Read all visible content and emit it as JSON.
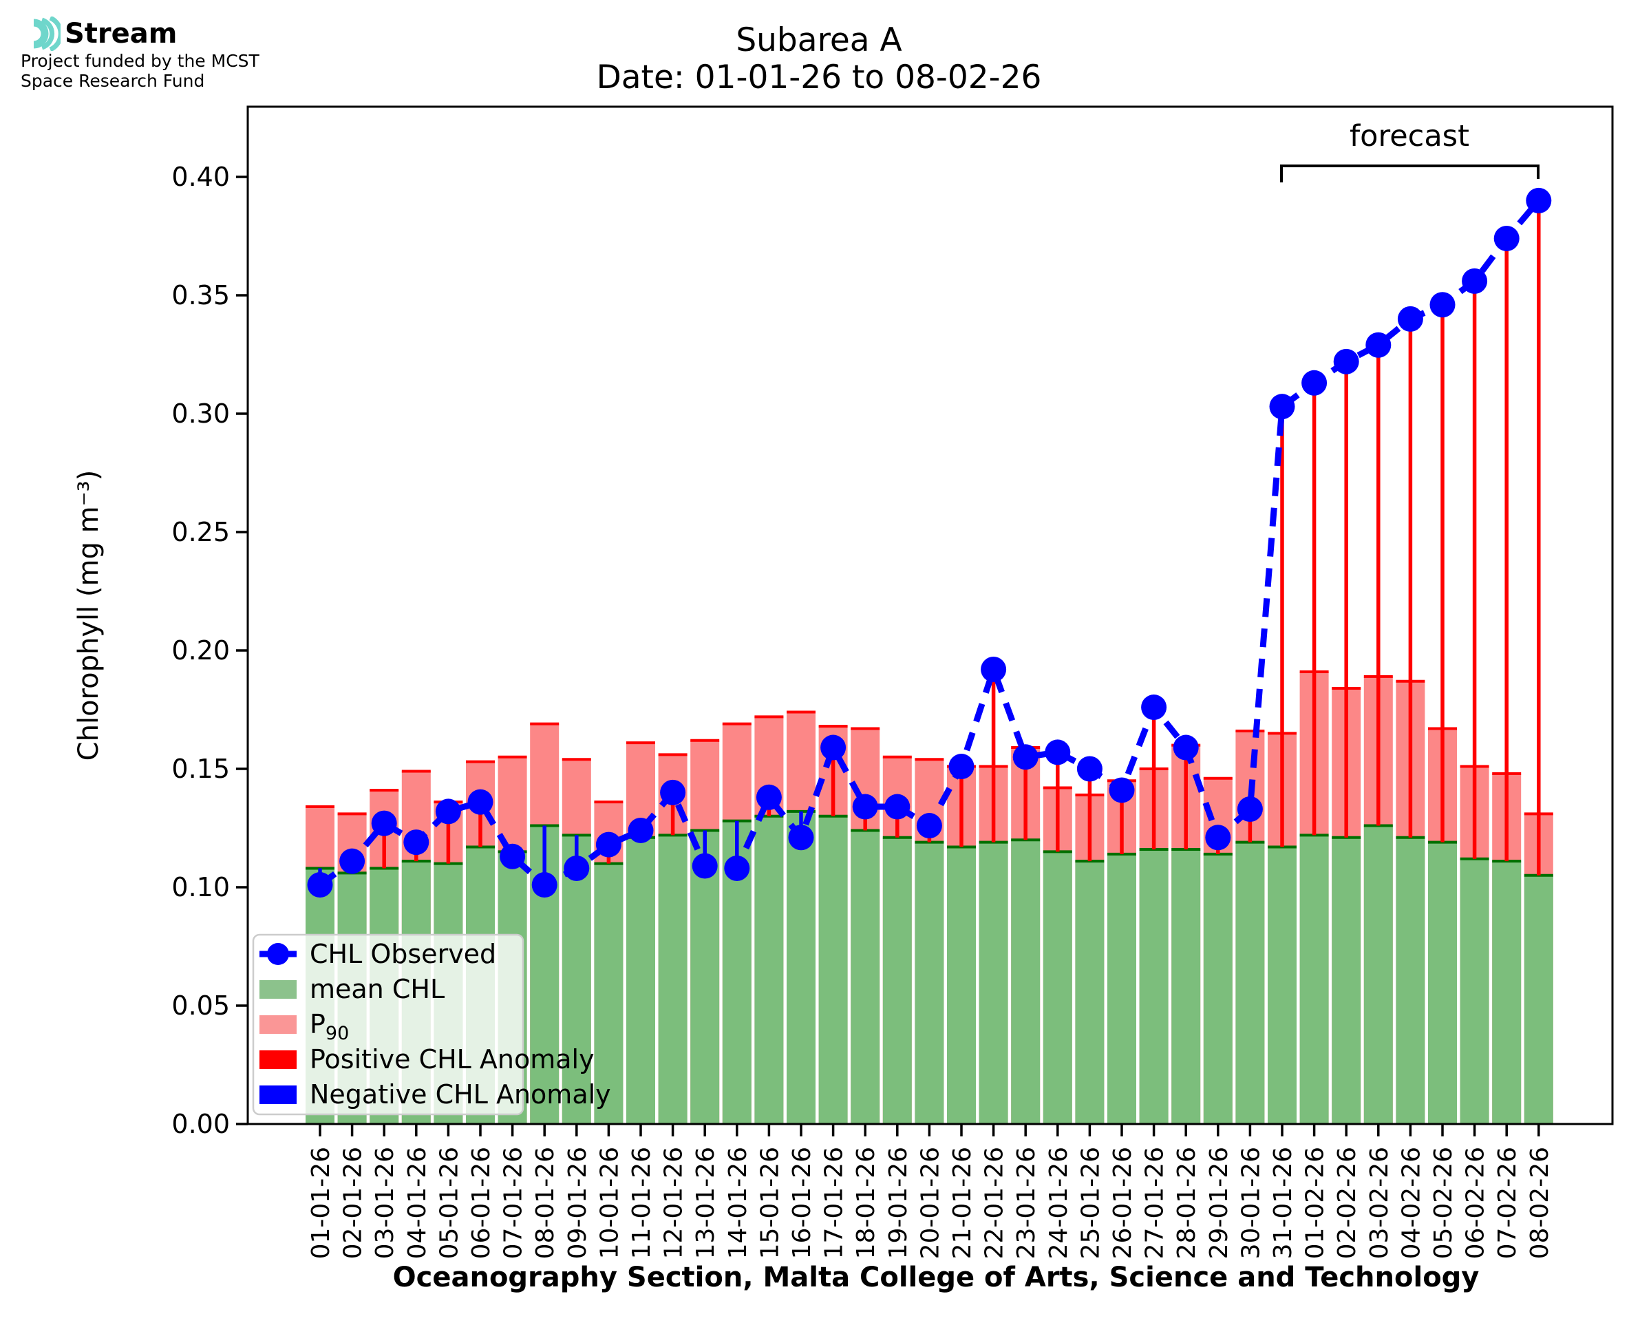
{
  "logo": {
    "brand": "Stream",
    "tagline_line1": "Project funded by the MCST",
    "tagline_line2": "Space Research Fund"
  },
  "title": {
    "line1": "Subarea A",
    "line2": "Date: 01-01-26 to 08-02-26"
  },
  "forecast_label": "forecast",
  "axis": {
    "ylabel": "Chlorophyll (mg m⁻³)",
    "xlabel": "Oceanography Section, Malta College of Arts, Science and Technology"
  },
  "legend": {
    "items": [
      {
        "label": "CHL Observed"
      },
      {
        "label": "mean CHL"
      },
      {
        "label": "P",
        "sub": "90"
      },
      {
        "label": "Positive CHL Anomaly"
      },
      {
        "label": "Negative CHL Anomaly"
      }
    ]
  },
  "colors": {
    "mean_bar": "#7cbe7c",
    "mean_edge": "#006f00",
    "p90_bar": "#fc8787",
    "p90_edge": "#ff0000",
    "observed": "#0000ff",
    "anomaly_positive": "#ff0000",
    "anomaly_negative": "#0000ff",
    "legend_mean_swatch": "#8cc28c",
    "legend_p90_swatch": "#fa9696",
    "logo_teal": "#6fd6cb",
    "spine": "#000000"
  },
  "chart_data": {
    "type": "bar",
    "title": "Subarea A",
    "subtitle": "Date: 01-01-26 to 08-02-26",
    "xlabel": "Oceanography Section, Malta College of Arts, Science and Technology",
    "ylabel": "Chlorophyll (mg m⁻³)",
    "ylim": [
      0.0,
      0.43
    ],
    "yticks": [
      0.0,
      0.05,
      0.1,
      0.15,
      0.2,
      0.25,
      0.3,
      0.35,
      0.4
    ],
    "grid": false,
    "legend_position": "lower left",
    "annotation": {
      "label": "forecast",
      "from": "31-01-26",
      "to": "08-02-26",
      "start_index": 30,
      "end_index": 38
    },
    "categories": [
      "01-01-26",
      "02-01-26",
      "03-01-26",
      "04-01-26",
      "05-01-26",
      "06-01-26",
      "07-01-26",
      "08-01-26",
      "09-01-26",
      "10-01-26",
      "11-01-26",
      "12-01-26",
      "13-01-26",
      "14-01-26",
      "15-01-26",
      "16-01-26",
      "17-01-26",
      "18-01-26",
      "19-01-26",
      "20-01-26",
      "21-01-26",
      "22-01-26",
      "23-01-26",
      "24-01-26",
      "25-01-26",
      "26-01-26",
      "27-01-26",
      "28-01-26",
      "29-01-26",
      "30-01-26",
      "31-01-26",
      "01-02-26",
      "02-02-26",
      "03-02-26",
      "04-02-26",
      "05-02-26",
      "06-02-26",
      "07-02-26",
      "08-02-26"
    ],
    "series": [
      {
        "name": "mean CHL",
        "type": "bar",
        "values": [
          0.108,
          0.106,
          0.108,
          0.111,
          0.11,
          0.117,
          0.115,
          0.126,
          0.122,
          0.11,
          0.121,
          0.122,
          0.124,
          0.128,
          0.13,
          0.132,
          0.13,
          0.124,
          0.121,
          0.119,
          0.117,
          0.119,
          0.12,
          0.115,
          0.111,
          0.114,
          0.116,
          0.116,
          0.114,
          0.119,
          0.117,
          0.122,
          0.121,
          0.126,
          0.121,
          0.119,
          0.112,
          0.111,
          0.105
        ]
      },
      {
        "name": "P90",
        "type": "bar",
        "values": [
          0.134,
          0.131,
          0.141,
          0.149,
          0.136,
          0.153,
          0.155,
          0.169,
          0.154,
          0.136,
          0.161,
          0.156,
          0.162,
          0.169,
          0.172,
          0.174,
          0.168,
          0.167,
          0.155,
          0.154,
          0.151,
          0.151,
          0.159,
          0.142,
          0.139,
          0.145,
          0.15,
          0.16,
          0.146,
          0.166,
          0.165,
          0.191,
          0.184,
          0.189,
          0.187,
          0.167,
          0.151,
          0.148,
          0.131
        ]
      },
      {
        "name": "CHL Observed",
        "type": "line",
        "values": [
          0.101,
          0.111,
          0.127,
          0.119,
          0.132,
          0.136,
          0.113,
          0.101,
          0.108,
          0.118,
          0.124,
          0.14,
          0.109,
          0.108,
          0.138,
          0.121,
          0.159,
          0.134,
          0.134,
          0.126,
          0.151,
          0.192,
          0.155,
          0.157,
          0.15,
          0.141,
          0.176,
          0.159,
          0.121,
          0.133,
          0.303,
          0.313,
          0.322,
          0.329,
          0.34,
          0.346,
          0.356,
          0.374,
          0.39
        ]
      }
    ],
    "anomaly_rule": "red line where observed > mean CHL, blue line where observed < mean CHL, drawn from mean bar top to observed point"
  }
}
